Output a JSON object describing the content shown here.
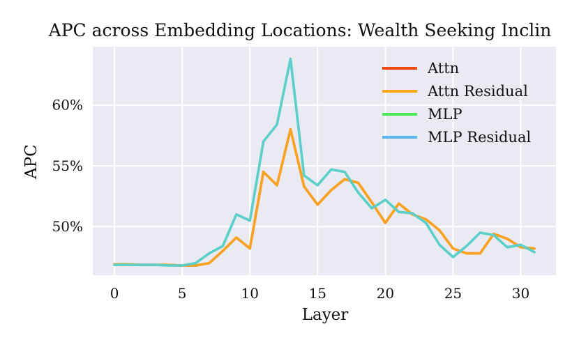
{
  "chart_data": {
    "type": "line",
    "title": "APC across Embedding Locations: Wealth Seeking Inclin",
    "xlabel": "Layer",
    "ylabel": "APC",
    "xlim": [
      -1.6,
      32.6
    ],
    "ylim": [
      46.0,
      64.8
    ],
    "xticks": [
      0,
      5,
      10,
      15,
      20,
      25,
      30
    ],
    "xtick_labels": [
      "0",
      "5",
      "10",
      "15",
      "20",
      "25",
      "30"
    ],
    "yticks": [
      50,
      55,
      60
    ],
    "ytick_labels": [
      "50%",
      "55%",
      "60%"
    ],
    "grid": true,
    "legend_position": "top-right",
    "x": [
      0,
      1,
      2,
      3,
      4,
      5,
      6,
      7,
      8,
      9,
      10,
      11,
      12,
      13,
      14,
      15,
      16,
      17,
      18,
      19,
      20,
      21,
      22,
      23,
      24,
      25,
      26,
      27,
      28,
      29,
      30,
      31
    ],
    "series": [
      {
        "name": "Attn",
        "color": "#f04a10",
        "values": [
          46.9,
          46.9,
          46.85,
          46.85,
          46.85,
          46.8,
          46.8,
          47.0,
          48.0,
          49.1,
          48.2,
          54.5,
          53.4,
          58.0,
          53.3,
          51.8,
          53.0,
          53.9,
          53.6,
          52.0,
          50.3,
          51.9,
          51.0,
          50.6,
          49.7,
          48.2,
          47.8,
          47.8,
          49.4,
          49.0,
          48.3,
          48.2
        ]
      },
      {
        "name": "Attn Residual",
        "color": "#fbaa1e",
        "values": [
          46.9,
          46.9,
          46.85,
          46.85,
          46.85,
          46.8,
          46.8,
          47.0,
          48.0,
          49.1,
          48.2,
          54.5,
          53.4,
          58.0,
          53.3,
          51.8,
          53.0,
          53.9,
          53.6,
          52.0,
          50.3,
          51.9,
          51.0,
          50.6,
          49.7,
          48.2,
          47.8,
          47.8,
          49.4,
          49.0,
          48.3,
          48.2
        ]
      },
      {
        "name": "MLP",
        "color": "#4de85a",
        "values": [
          46.85,
          46.85,
          46.85,
          46.85,
          46.8,
          46.8,
          47.0,
          47.8,
          48.4,
          51.0,
          50.5,
          57.0,
          58.4,
          63.8,
          54.2,
          53.4,
          54.7,
          54.5,
          52.8,
          51.5,
          52.2,
          51.2,
          51.1,
          50.3,
          48.5,
          47.5,
          48.4,
          49.5,
          49.3,
          48.3,
          48.5,
          47.9
        ]
      },
      {
        "name": "MLP Residual",
        "color": "#5ccbd6",
        "values": [
          46.85,
          46.85,
          46.85,
          46.85,
          46.8,
          46.8,
          47.0,
          47.8,
          48.4,
          51.0,
          50.5,
          57.0,
          58.4,
          63.8,
          54.2,
          53.4,
          54.7,
          54.5,
          52.8,
          51.5,
          52.2,
          51.2,
          51.1,
          50.3,
          48.5,
          47.5,
          48.4,
          49.5,
          49.3,
          48.3,
          48.5,
          47.9
        ]
      }
    ],
    "legend_swatch_colors": [
      "#f04a10",
      "#fbaa1e",
      "#4de85a",
      "#58b6ef"
    ],
    "plot_background": "#eaeaf2",
    "grid_color": "#ffffff"
  }
}
